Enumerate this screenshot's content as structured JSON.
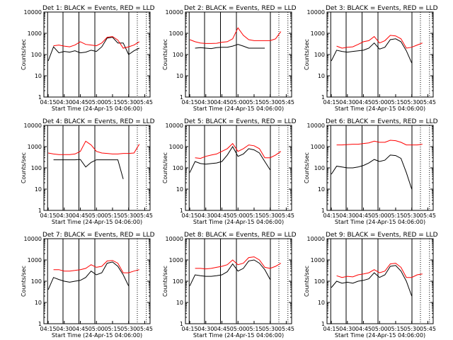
{
  "figure": {
    "xlabel": "Start Time (24-Apr-15 04:06:00)",
    "ylabel": "Counts/sec",
    "x_tick_labels": [
      "04:15",
      "04:30",
      "04:45",
      "05:00",
      "05:15",
      "05:30",
      "05:45"
    ],
    "y_tick_labels": [
      "1",
      "10",
      "100",
      "1000",
      "10000"
    ],
    "colors": {
      "events": "#000000",
      "lld": "#ff0000",
      "axes": "#000000"
    }
  },
  "chart_data": [
    {
      "type": "line",
      "title": "Det 1: BLACK = Events, RED = LLD",
      "xlabel": "Start Time (24-Apr-15 04:06:00)",
      "ylabel": "Counts/sec",
      "x": [
        "04:15",
        "04:20",
        "04:25",
        "04:30",
        "04:35",
        "04:40",
        "04:45",
        "04:50",
        "04:55",
        "05:00",
        "05:05",
        "05:10",
        "05:15",
        "05:20",
        "05:25",
        "05:30",
        "05:35",
        "05:40",
        "05:45"
      ],
      "series": [
        {
          "name": "Events",
          "values": [
            50,
            230,
            120,
            140,
            130,
            150,
            120,
            130,
            160,
            140,
            230,
            600,
            650,
            350,
            350,
            100,
            150,
            200,
            null
          ]
        },
        {
          "name": "LLD",
          "values": [
            null,
            260,
            280,
            250,
            230,
            280,
            400,
            300,
            280,
            260,
            350,
            650,
            700,
            480,
            200,
            230,
            280,
            400,
            null
          ]
        }
      ],
      "ylim": [
        1,
        10000
      ],
      "yscale": "log",
      "grid": false
    },
    {
      "type": "line",
      "title": "Det 2: BLACK = Events, RED = LLD",
      "xlabel": "Start Time (24-Apr-15 04:06:00)",
      "ylabel": "Counts/sec",
      "x": [
        "04:15",
        "04:20",
        "04:25",
        "04:30",
        "04:35",
        "04:40",
        "04:45",
        "04:50",
        "04:55",
        "05:00",
        "05:05",
        "05:10",
        "05:15",
        "05:20",
        "05:25",
        "05:30",
        "05:35",
        "05:40",
        "05:45"
      ],
      "series": [
        {
          "name": "Events",
          "values": [
            null,
            200,
            210,
            200,
            190,
            210,
            220,
            220,
            250,
            300,
            250,
            200,
            200,
            200,
            200,
            null,
            null,
            null,
            null
          ]
        },
        {
          "name": "LLD",
          "values": [
            500,
            400,
            350,
            330,
            330,
            340,
            380,
            400,
            550,
            1800,
            800,
            500,
            450,
            450,
            450,
            450,
            550,
            1200,
            null
          ]
        }
      ],
      "ylim": [
        1,
        10000
      ],
      "yscale": "log",
      "grid": false
    },
    {
      "type": "line",
      "title": "Det 3: BLACK = Events, RED = LLD",
      "xlabel": "Start Time (24-Apr-15 04:06:00)",
      "ylabel": "Counts/sec",
      "x": [
        "04:15",
        "04:20",
        "04:25",
        "04:30",
        "04:35",
        "04:40",
        "04:45",
        "04:50",
        "04:55",
        "05:00",
        "05:05",
        "05:10",
        "05:15",
        "05:20",
        "05:25",
        "05:30",
        "05:35",
        "05:40",
        "05:45"
      ],
      "series": [
        {
          "name": "Events",
          "values": [
            50,
            160,
            140,
            130,
            140,
            150,
            160,
            200,
            350,
            180,
            220,
            500,
            550,
            400,
            150,
            40,
            null,
            null,
            null
          ]
        },
        {
          "name": "LLD",
          "values": [
            null,
            250,
            200,
            220,
            230,
            300,
            400,
            450,
            700,
            350,
            450,
            800,
            750,
            550,
            200,
            220,
            280,
            350,
            null
          ]
        }
      ],
      "ylim": [
        1,
        10000
      ],
      "yscale": "log",
      "grid": false
    },
    {
      "type": "line",
      "title": "Det 4: BLACK = Events, RED = LLD",
      "xlabel": "Start Time (24-Apr-15 04:06:00)",
      "ylabel": "Counts/sec",
      "x": [
        "04:15",
        "04:20",
        "04:25",
        "04:30",
        "04:35",
        "04:40",
        "04:45",
        "04:50",
        "04:55",
        "05:00",
        "05:05",
        "05:10",
        "05:15",
        "05:20",
        "05:25",
        "05:30",
        "05:35",
        "05:40",
        "05:45"
      ],
      "series": [
        {
          "name": "Events",
          "values": [
            null,
            240,
            240,
            240,
            240,
            240,
            250,
            110,
            180,
            240,
            240,
            240,
            240,
            240,
            30,
            null,
            null,
            null,
            null
          ]
        },
        {
          "name": "LLD",
          "values": [
            500,
            450,
            420,
            420,
            420,
            450,
            600,
            1800,
            1200,
            600,
            500,
            480,
            450,
            450,
            480,
            480,
            500,
            1300,
            null
          ]
        }
      ],
      "ylim": [
        1,
        10000
      ],
      "yscale": "log",
      "grid": false
    },
    {
      "type": "line",
      "title": "Det 5: BLACK = Events, RED = LLD",
      "xlabel": "Start Time (24-Apr-15 04:06:00)",
      "ylabel": "Counts/sec",
      "x": [
        "04:15",
        "04:20",
        "04:25",
        "04:30",
        "04:35",
        "04:40",
        "04:45",
        "04:50",
        "04:55",
        "05:00",
        "05:05",
        "05:10",
        "05:15",
        "05:20",
        "05:25",
        "05:30",
        "05:35",
        "05:40",
        "05:45"
      ],
      "series": [
        {
          "name": "Events",
          "values": [
            60,
            200,
            160,
            150,
            160,
            170,
            200,
            400,
            1000,
            350,
            450,
            800,
            700,
            500,
            200,
            80,
            null,
            null,
            null
          ]
        },
        {
          "name": "LLD",
          "values": [
            null,
            300,
            280,
            350,
            400,
            450,
            600,
            800,
            1400,
            600,
            800,
            1200,
            1100,
            800,
            300,
            300,
            400,
            600,
            null
          ]
        }
      ],
      "ylim": [
        1,
        10000
      ],
      "yscale": "log",
      "grid": false
    },
    {
      "type": "line",
      "title": "Det 6: BLACK = Events, RED = LLD",
      "xlabel": "Start Time (24-Apr-15 04:06:00)",
      "ylabel": "Counts/sec",
      "x": [
        "04:15",
        "04:20",
        "04:25",
        "04:30",
        "04:35",
        "04:40",
        "04:45",
        "04:50",
        "04:55",
        "05:00",
        "05:05",
        "05:10",
        "05:15",
        "05:20",
        "05:25",
        "05:30",
        "05:35",
        "05:40",
        "05:45"
      ],
      "series": [
        {
          "name": "Events",
          "values": [
            50,
            120,
            110,
            100,
            100,
            110,
            130,
            170,
            250,
            200,
            230,
            400,
            380,
            280,
            60,
            10,
            null,
            null,
            null
          ]
        },
        {
          "name": "LLD",
          "values": [
            null,
            1200,
            1200,
            1250,
            1300,
            1300,
            1400,
            1500,
            1800,
            1600,
            1600,
            2000,
            1900,
            1600,
            1200,
            1200,
            1200,
            1300,
            null
          ]
        }
      ],
      "ylim": [
        1,
        10000
      ],
      "yscale": "log",
      "grid": false
    },
    {
      "type": "line",
      "title": "Det 7: BLACK = Events, RED = LLD",
      "xlabel": "Start Time (24-Apr-15 04:06:00)",
      "ylabel": "Counts/sec",
      "x": [
        "04:15",
        "04:20",
        "04:25",
        "04:30",
        "04:35",
        "04:40",
        "04:45",
        "04:50",
        "04:55",
        "05:00",
        "05:05",
        "05:10",
        "05:15",
        "05:20",
        "05:25",
        "05:30",
        "05:35",
        "05:40",
        "05:45"
      ],
      "series": [
        {
          "name": "Events",
          "values": [
            40,
            150,
            120,
            100,
            90,
            100,
            110,
            150,
            300,
            200,
            250,
            700,
            800,
            500,
            200,
            60,
            null,
            null,
            null
          ]
        },
        {
          "name": "LLD",
          "values": [
            null,
            350,
            350,
            300,
            300,
            320,
            350,
            400,
            600,
            450,
            500,
            900,
            950,
            700,
            250,
            250,
            300,
            350,
            null
          ]
        }
      ],
      "ylim": [
        1,
        10000
      ],
      "yscale": "log",
      "grid": false
    },
    {
      "type": "line",
      "title": "Det 8: BLACK = Events, RED = LLD",
      "xlabel": "Start Time (24-Apr-15 04:06:00)",
      "ylabel": "Counts/sec",
      "x": [
        "04:15",
        "04:20",
        "04:25",
        "04:30",
        "04:35",
        "04:40",
        "04:45",
        "04:50",
        "04:55",
        "05:00",
        "05:05",
        "05:10",
        "05:15",
        "05:20",
        "05:25",
        "05:30",
        "05:35",
        "05:40",
        "05:45"
      ],
      "series": [
        {
          "name": "Events",
          "values": [
            60,
            200,
            180,
            170,
            170,
            180,
            200,
            280,
            650,
            300,
            400,
            900,
            1000,
            700,
            350,
            120,
            null,
            null,
            null
          ]
        },
        {
          "name": "LLD",
          "values": [
            null,
            400,
            400,
            380,
            400,
            450,
            500,
            600,
            1000,
            600,
            700,
            1300,
            1400,
            1000,
            450,
            400,
            500,
            700,
            null
          ]
        }
      ],
      "ylim": [
        1,
        10000
      ],
      "yscale": "log",
      "grid": false
    },
    {
      "type": "line",
      "title": "Det 9: BLACK = Events, RED = LLD",
      "xlabel": "Start Time (24-Apr-15 04:06:00)",
      "ylabel": "Counts/sec",
      "x": [
        "04:15",
        "04:20",
        "04:25",
        "04:30",
        "04:35",
        "04:40",
        "04:45",
        "04:50",
        "04:55",
        "05:00",
        "05:05",
        "05:10",
        "05:15",
        "05:20",
        "05:25",
        "05:30",
        "05:35",
        "05:40",
        "05:45"
      ],
      "series": [
        {
          "name": "Events",
          "values": [
            50,
            100,
            80,
            90,
            80,
            100,
            110,
            130,
            250,
            150,
            200,
            500,
            550,
            300,
            100,
            20,
            null,
            null,
            null
          ]
        },
        {
          "name": "LLD",
          "values": [
            null,
            180,
            150,
            170,
            160,
            200,
            220,
            250,
            350,
            250,
            300,
            650,
            700,
            450,
            150,
            150,
            200,
            220,
            null
          ]
        }
      ],
      "ylim": [
        1,
        10000
      ],
      "yscale": "log",
      "grid": false
    }
  ]
}
